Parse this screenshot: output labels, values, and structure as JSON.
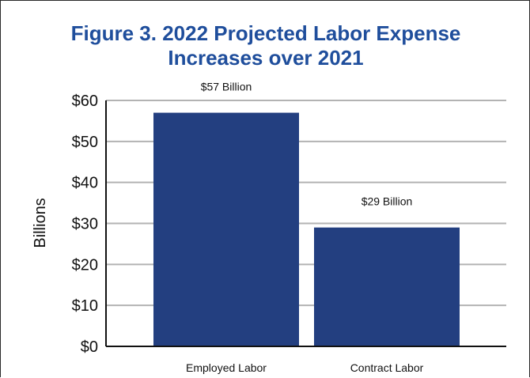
{
  "chart_data": {
    "type": "bar",
    "title": "Figure 3. 2022 Projected Labor Expense Increases over 2021",
    "title_lines": [
      "Figure 3. 2022 Projected Labor Expense",
      "Increases over 2021"
    ],
    "xlabel": "",
    "ylabel": "Billions",
    "categories": [
      "Employed Labor",
      "Contract Labor"
    ],
    "values": [
      57,
      29
    ],
    "data_labels": [
      "$57 Billion",
      "$29 Billion"
    ],
    "ylim": [
      0,
      60
    ],
    "yticks": [
      0,
      10,
      20,
      30,
      40,
      50,
      60
    ],
    "ytick_labels": [
      "$0",
      "$10",
      "$20",
      "$30",
      "$40",
      "$50",
      "$60"
    ],
    "grid": true,
    "colors": {
      "bar": "#233f80",
      "title": "#1f4e9c",
      "grid": "#b3b3b3",
      "axis": "#111111"
    }
  }
}
